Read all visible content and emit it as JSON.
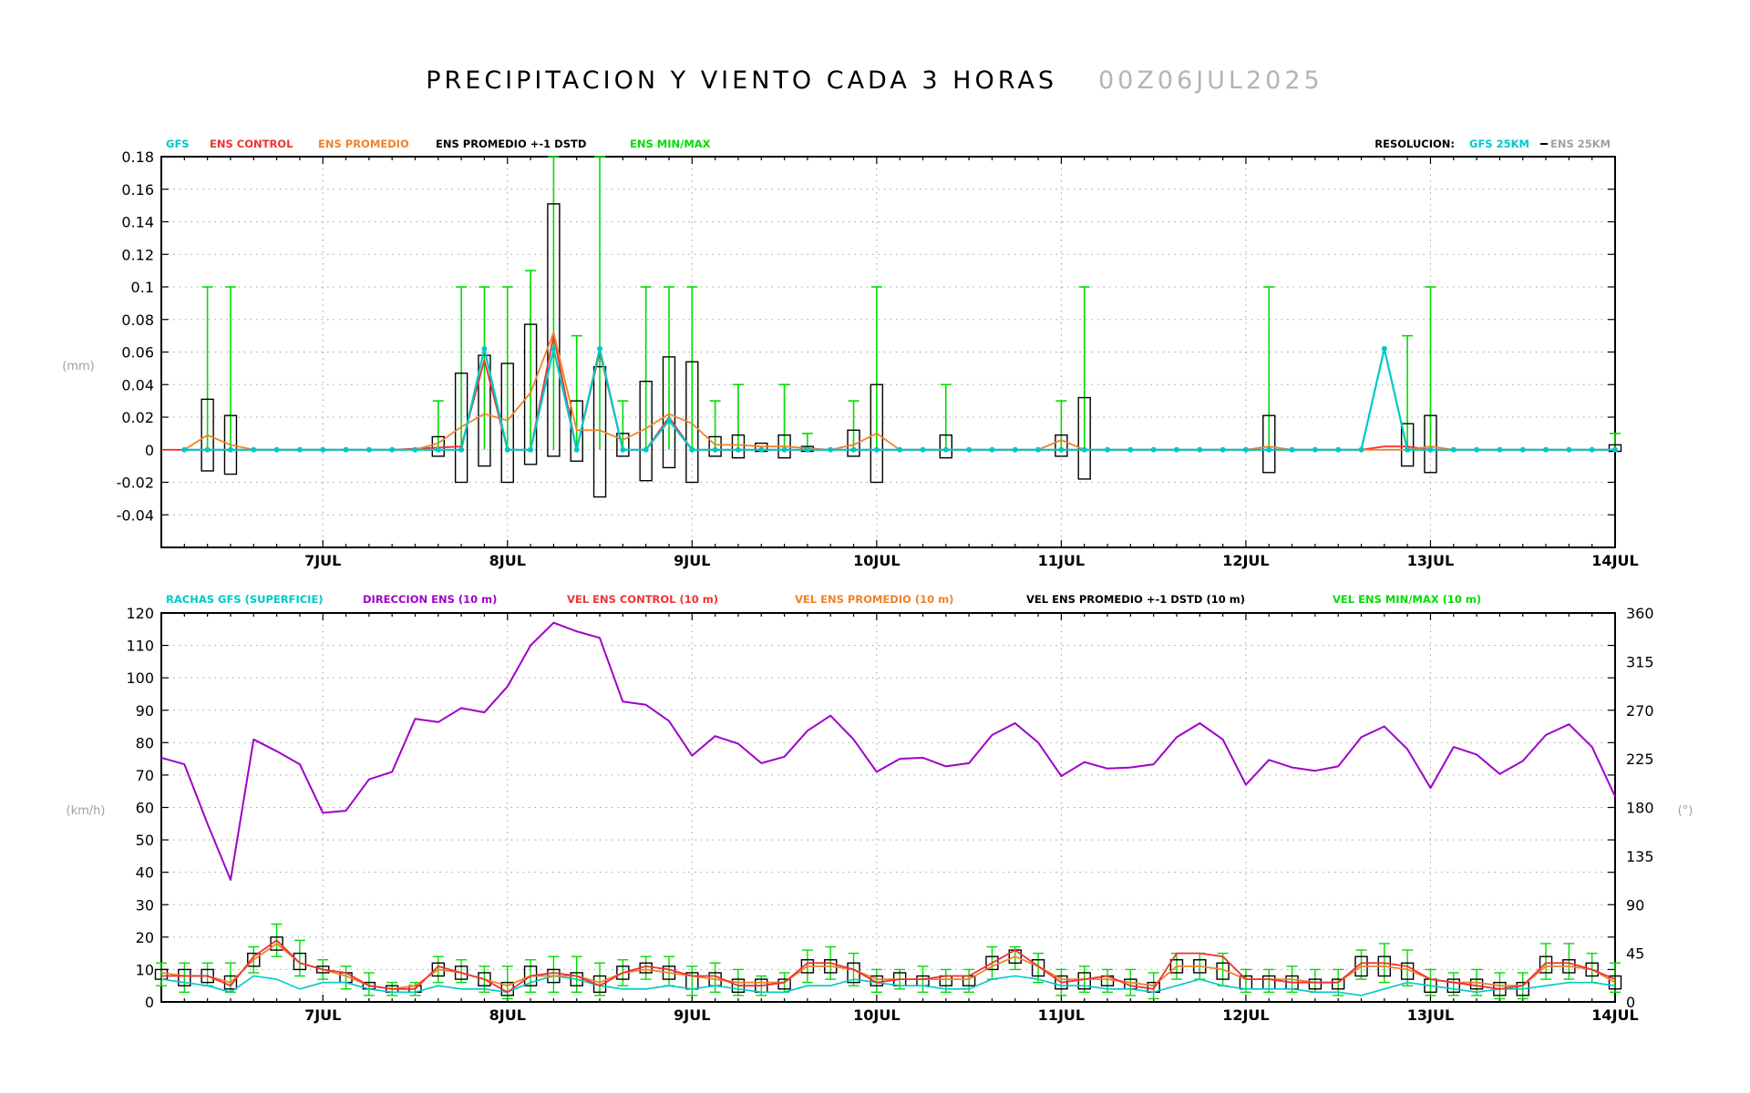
{
  "header": {
    "title": "PRECIPITACION Y VIENTO CADA 3 HORAS",
    "date": "00Z06JUL2025"
  },
  "colors": {
    "gfs": "#00c8c8",
    "ens_control": "#f03232",
    "ens_promedio": "#f08228",
    "ens_dstd": "#000000",
    "ens_minmax": "#00dc00",
    "direccion": "#a000c8",
    "grey": "#a0a0a0"
  },
  "chart_data": [
    {
      "type": "line",
      "name": "precipitation",
      "legend": {
        "gfs": "GFS",
        "control": "ENS CONTROL",
        "promedio": "ENS PROMEDIO",
        "dstd": "ENS PROMEDIO +-1 DSTD",
        "minmax": "ENS MIN/MAX",
        "resolucion": "RESOLUCION:",
        "res_gfs": "GFS 25KM",
        "res_ens": "ENS 25KM"
      },
      "ylabel": "(mm)",
      "ylim": [
        -0.06,
        0.18
      ],
      "yticks": [
        -0.04,
        -0.02,
        0,
        0.02,
        0.04,
        0.06,
        0.08,
        0.1,
        0.12,
        0.14,
        0.16,
        0.18
      ],
      "ytick_labels": [
        "-0.04",
        "-0.02",
        "0",
        "0.02",
        "0.04",
        "0.06",
        "0.08",
        "0.1",
        "0.12",
        "0.14",
        "0.16",
        "0.18"
      ],
      "xlim": [
        0,
        63
      ],
      "xticks": [
        7,
        15,
        23,
        31,
        39,
        47,
        55,
        63
      ],
      "xtick_labels": [
        "7JUL",
        "8JUL",
        "9JUL",
        "10JUL",
        "11JUL",
        "12JUL",
        "13JUL",
        "14JUL"
      ],
      "gfs": [
        [
          1,
          0
        ],
        [
          2,
          0
        ],
        [
          3,
          0
        ],
        [
          4,
          0
        ],
        [
          5,
          0
        ],
        [
          6,
          0
        ],
        [
          7,
          0
        ],
        [
          8,
          0
        ],
        [
          9,
          0
        ],
        [
          10,
          0
        ],
        [
          11,
          0
        ],
        [
          12,
          0
        ],
        [
          13,
          0
        ],
        [
          14,
          0.062
        ],
        [
          15,
          0
        ],
        [
          16,
          0
        ],
        [
          17,
          0.062
        ],
        [
          18,
          0
        ],
        [
          19,
          0.062
        ],
        [
          20,
          0
        ],
        [
          21,
          0
        ],
        [
          22,
          0.018
        ],
        [
          23,
          0
        ],
        [
          24,
          0
        ],
        [
          25,
          0
        ],
        [
          26,
          0
        ],
        [
          27,
          0
        ],
        [
          28,
          0
        ],
        [
          29,
          0
        ],
        [
          30,
          0
        ],
        [
          31,
          0
        ],
        [
          32,
          0
        ],
        [
          33,
          0
        ],
        [
          34,
          0
        ],
        [
          35,
          0
        ],
        [
          36,
          0
        ],
        [
          37,
          0
        ],
        [
          38,
          0
        ],
        [
          39,
          0
        ],
        [
          40,
          0
        ],
        [
          41,
          0
        ],
        [
          42,
          0
        ],
        [
          43,
          0
        ],
        [
          44,
          0
        ],
        [
          45,
          0
        ],
        [
          46,
          0
        ],
        [
          47,
          0
        ],
        [
          48,
          0
        ],
        [
          49,
          0
        ],
        [
          50,
          0
        ],
        [
          51,
          0
        ],
        [
          52,
          0
        ],
        [
          53,
          0.062
        ],
        [
          54,
          0
        ],
        [
          55,
          0
        ],
        [
          56,
          0
        ],
        [
          57,
          0
        ],
        [
          58,
          0
        ],
        [
          59,
          0
        ],
        [
          60,
          0
        ],
        [
          61,
          0
        ],
        [
          62,
          0
        ],
        [
          63,
          0
        ]
      ],
      "control": [
        [
          0,
          0
        ],
        [
          10,
          0
        ],
        [
          13,
          0.002
        ],
        [
          14,
          0.055
        ],
        [
          15,
          0
        ],
        [
          16,
          0
        ],
        [
          17,
          0.07
        ],
        [
          18,
          0
        ],
        [
          19,
          0.06
        ],
        [
          20,
          0
        ],
        [
          21,
          0
        ],
        [
          22,
          0.02
        ],
        [
          23,
          0
        ],
        [
          52,
          0
        ],
        [
          53,
          0.002
        ],
        [
          54,
          0.002
        ],
        [
          55,
          0
        ],
        [
          63,
          0
        ]
      ],
      "promedio": [
        [
          1,
          0
        ],
        [
          2,
          0.009
        ],
        [
          3,
          0.003
        ],
        [
          4,
          0
        ],
        [
          11,
          0
        ],
        [
          12,
          0.004
        ],
        [
          13,
          0.014
        ],
        [
          14,
          0.022
        ],
        [
          15,
          0.018
        ],
        [
          16,
          0.035
        ],
        [
          17,
          0.072
        ],
        [
          18,
          0.012
        ],
        [
          19,
          0.012
        ],
        [
          20,
          0.006
        ],
        [
          21,
          0.013
        ],
        [
          22,
          0.022
        ],
        [
          23,
          0.016
        ],
        [
          24,
          0.003
        ],
        [
          25,
          0.003
        ],
        [
          26,
          0.002
        ],
        [
          27,
          0.002
        ],
        [
          28,
          0.001
        ],
        [
          29,
          0
        ],
        [
          30,
          0.003
        ],
        [
          31,
          0.01
        ],
        [
          32,
          0
        ],
        [
          34,
          0
        ],
        [
          35,
          0
        ],
        [
          38,
          0
        ],
        [
          39,
          0.006
        ],
        [
          40,
          0
        ],
        [
          47,
          0
        ],
        [
          48,
          0.002
        ],
        [
          49,
          0
        ],
        [
          54,
          0
        ],
        [
          55,
          0.002
        ],
        [
          56,
          0
        ],
        [
          63,
          0
        ]
      ],
      "boxes": [
        [
          2,
          -0.013,
          0.031
        ],
        [
          3,
          -0.015,
          0.021
        ],
        [
          12,
          -0.004,
          0.008
        ],
        [
          13,
          -0.02,
          0.047
        ],
        [
          14,
          -0.01,
          0.058
        ],
        [
          15,
          -0.02,
          0.053
        ],
        [
          16,
          -0.009,
          0.077
        ],
        [
          17,
          -0.004,
          0.151
        ],
        [
          18,
          -0.007,
          0.03
        ],
        [
          19,
          -0.029,
          0.051
        ],
        [
          20,
          -0.004,
          0.01
        ],
        [
          21,
          -0.019,
          0.042
        ],
        [
          22,
          -0.011,
          0.057
        ],
        [
          23,
          -0.02,
          0.054
        ],
        [
          24,
          -0.004,
          0.008
        ],
        [
          25,
          -0.005,
          0.009
        ],
        [
          26,
          -0.001,
          0.004
        ],
        [
          27,
          -0.005,
          0.009
        ],
        [
          28,
          -0.001,
          0.002
        ],
        [
          30,
          -0.004,
          0.012
        ],
        [
          31,
          -0.02,
          0.04
        ],
        [
          34,
          -0.005,
          0.009
        ],
        [
          39,
          -0.004,
          0.009
        ],
        [
          40,
          -0.018,
          0.032
        ],
        [
          48,
          -0.014,
          0.021
        ],
        [
          54,
          -0.01,
          0.016
        ],
        [
          55,
          -0.014,
          0.021
        ],
        [
          63,
          -0.001,
          0.003
        ]
      ],
      "minmax": [
        [
          2,
          0,
          0.1
        ],
        [
          3,
          0,
          0.1
        ],
        [
          12,
          0,
          0.03
        ],
        [
          13,
          0,
          0.1
        ],
        [
          14,
          0,
          0.1
        ],
        [
          15,
          0,
          0.1
        ],
        [
          16,
          0,
          0.11
        ],
        [
          17,
          0,
          0.18
        ],
        [
          18,
          0,
          0.07
        ],
        [
          19,
          0,
          0.18
        ],
        [
          20,
          0,
          0.03
        ],
        [
          21,
          0,
          0.1
        ],
        [
          22,
          0,
          0.1
        ],
        [
          23,
          0,
          0.1
        ],
        [
          24,
          0,
          0.03
        ],
        [
          25,
          0,
          0.04
        ],
        [
          27,
          0,
          0.04
        ],
        [
          28,
          0,
          0.01
        ],
        [
          30,
          0,
          0.03
        ],
        [
          31,
          0,
          0.1
        ],
        [
          34,
          0,
          0.04
        ],
        [
          39,
          0,
          0.03
        ],
        [
          40,
          0,
          0.1
        ],
        [
          48,
          0,
          0.1
        ],
        [
          54,
          0,
          0.07
        ],
        [
          55,
          0,
          0.1
        ],
        [
          63,
          0,
          0.01
        ]
      ]
    },
    {
      "type": "line",
      "name": "wind",
      "legend": {
        "rachas": "RACHAS GFS (SUPERFICIE)",
        "direccion": "DIRECCION ENS (10 m)",
        "control": "VEL ENS CONTROL (10 m)",
        "promedio": "VEL ENS PROMEDIO (10 m)",
        "dstd": "VEL ENS PROMEDIO +-1 DSTD (10 m)",
        "minmax": "VEL ENS MIN/MAX (10 m)"
      },
      "ylabel": "(km/h)",
      "y2label": "(°)",
      "ylim": [
        0,
        120
      ],
      "yticks": [
        0,
        10,
        20,
        30,
        40,
        50,
        60,
        70,
        80,
        90,
        100,
        110,
        120
      ],
      "ytick_labels": [
        "0",
        "10",
        "20",
        "30",
        "40",
        "50",
        "60",
        "70",
        "80",
        "90",
        "100",
        "110",
        "120"
      ],
      "y2lim": [
        0,
        360
      ],
      "y2ticks": [
        0,
        45,
        90,
        135,
        180,
        225,
        270,
        315,
        360
      ],
      "y2tick_labels": [
        "0",
        "45",
        "90",
        "135",
        "180",
        "225",
        "270",
        "315",
        "360"
      ],
      "xlim": [
        0,
        63
      ],
      "xticks": [
        7,
        15,
        23,
        31,
        39,
        47,
        55,
        63
      ],
      "xtick_labels": [
        "7JUL",
        "8JUL",
        "9JUL",
        "10JUL",
        "11JUL",
        "12JUL",
        "13JUL",
        "14JUL"
      ],
      "direccion": [
        226,
        220,
        165,
        113,
        243,
        232,
        220,
        175,
        177,
        206,
        213,
        262,
        259,
        272,
        268,
        292,
        330,
        351,
        343,
        337,
        278,
        275,
        260,
        228,
        246,
        239,
        221,
        227,
        251,
        265,
        243,
        213,
        225,
        226,
        218,
        221,
        247,
        258,
        240,
        209,
        222,
        216,
        217,
        220,
        245,
        258,
        243,
        201,
        224,
        217,
        214,
        218,
        245,
        255,
        234,
        198,
        236,
        229,
        211,
        223,
        247,
        257,
        236,
        190
      ],
      "rachas": [
        7,
        6,
        5,
        3,
        8,
        7,
        4,
        6,
        6,
        4,
        3,
        3,
        5,
        4,
        4,
        3,
        6,
        8,
        7,
        5,
        4,
        4,
        5,
        4,
        5,
        4,
        3,
        3,
        5,
        5,
        7,
        6,
        5,
        5,
        4,
        4,
        7,
        8,
        7,
        5,
        5,
        4,
        4,
        3,
        5,
        7,
        5,
        4,
        4,
        4,
        3,
        3,
        2,
        4,
        6,
        5,
        4,
        3,
        4,
        4,
        5,
        6,
        6,
        5
      ],
      "control": [
        8,
        8,
        8,
        5,
        14,
        19,
        12,
        10,
        9,
        5,
        4,
        4,
        11,
        9,
        7,
        3,
        8,
        9,
        8,
        5,
        9,
        11,
        10,
        8,
        8,
        5,
        5,
        6,
        12,
        12,
        10,
        6,
        7,
        7,
        8,
        8,
        12,
        16,
        11,
        6,
        7,
        8,
        5,
        4,
        15,
        15,
        14,
        7,
        7,
        6,
        6,
        6,
        12,
        12,
        11,
        7,
        6,
        5,
        4,
        5,
        12,
        12,
        10,
        7
      ],
      "promedio": [
        9,
        8,
        8,
        6,
        13,
        18,
        12,
        10,
        8,
        5,
        4,
        5,
        10,
        9,
        7,
        5,
        8,
        8,
        8,
        6,
        9,
        10,
        9,
        8,
        7,
        6,
        6,
        6,
        11,
        11,
        10,
        7,
        7,
        7,
        7,
        7,
        11,
        14,
        11,
        7,
        7,
        7,
        6,
        5,
        11,
        11,
        10,
        7,
        7,
        7,
        6,
        6,
        11,
        11,
        10,
        7,
        6,
        6,
        5,
        5,
        11,
        11,
        10,
        6
      ],
      "dstd_lo": [
        7,
        5,
        6,
        4,
        11,
        16,
        10,
        9,
        6,
        4,
        3,
        3,
        8,
        7,
        5,
        2,
        5,
        6,
        5,
        3,
        7,
        9,
        7,
        4,
        5,
        3,
        3,
        4,
        9,
        9,
        6,
        5,
        5,
        5,
        5,
        5,
        10,
        12,
        8,
        4,
        4,
        5,
        4,
        3,
        9,
        9,
        7,
        4,
        4,
        4,
        4,
        4,
        8,
        8,
        7,
        3,
        3,
        4,
        2,
        2,
        9,
        9,
        8,
        4
      ],
      "dstd_hi": [
        10,
        10,
        10,
        8,
        15,
        20,
        15,
        11,
        9,
        6,
        5,
        5,
        12,
        11,
        9,
        6,
        11,
        10,
        9,
        8,
        11,
        12,
        11,
        9,
        9,
        7,
        7,
        7,
        13,
        13,
        12,
        8,
        9,
        8,
        8,
        8,
        14,
        16,
        13,
        8,
        9,
        8,
        7,
        6,
        13,
        13,
        12,
        8,
        8,
        8,
        7,
        7,
        14,
        14,
        12,
        7,
        7,
        7,
        6,
        6,
        14,
        13,
        12,
        8
      ],
      "min": [
        5,
        3,
        5,
        3,
        9,
        14,
        8,
        7,
        4,
        2,
        2,
        2,
        6,
        6,
        3,
        1,
        3,
        3,
        3,
        2,
        5,
        7,
        5,
        2,
        3,
        2,
        2,
        3,
        6,
        7,
        5,
        3,
        4,
        3,
        3,
        3,
        7,
        10,
        6,
        2,
        3,
        3,
        2,
        1,
        7,
        7,
        5,
        3,
        3,
        3,
        3,
        2,
        7,
        6,
        5,
        2,
        2,
        2,
        1,
        1,
        7,
        7,
        6,
        3
      ],
      "max": [
        12,
        12,
        12,
        12,
        17,
        24,
        19,
        13,
        11,
        9,
        6,
        6,
        14,
        13,
        11,
        11,
        13,
        14,
        14,
        12,
        13,
        14,
        14,
        11,
        12,
        10,
        8,
        9,
        16,
        17,
        15,
        10,
        10,
        11,
        10,
        10,
        17,
        17,
        15,
        10,
        11,
        10,
        10,
        9,
        15,
        15,
        15,
        10,
        10,
        11,
        10,
        10,
        16,
        18,
        16,
        10,
        9,
        10,
        9,
        9,
        18,
        18,
        15,
        12
      ]
    }
  ]
}
